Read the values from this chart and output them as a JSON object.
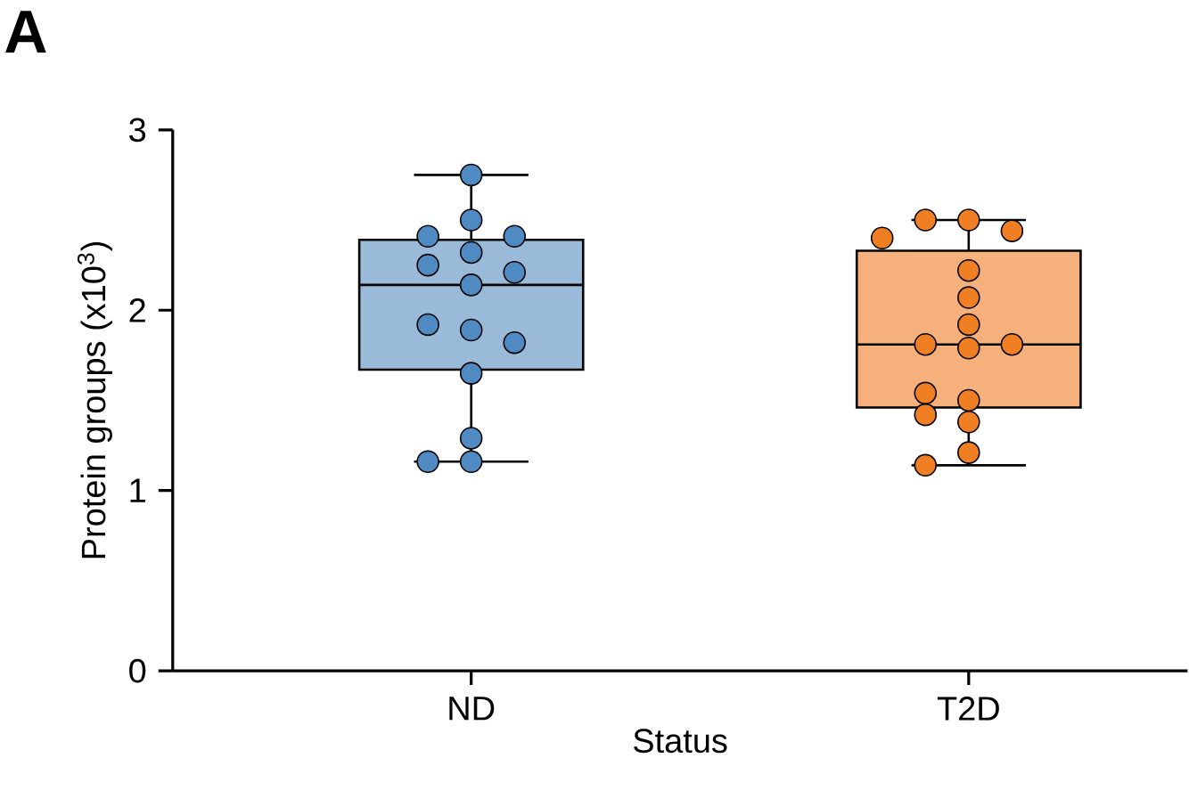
{
  "chart_data": {
    "type": "box",
    "title": "A",
    "xlabel": "Status",
    "ylabel": "Protein groups (x10$^{3}$)",
    "categories": [
      "ND",
      "T2D"
    ],
    "colors": [
      "#99bbd9",
      "#f5b07b"
    ],
    "boxes": [
      {
        "low": 1.16,
        "q1": 1.67,
        "median": 2.14,
        "q3": 2.39,
        "high": 2.75
      },
      {
        "low": 1.14,
        "q1": 1.46,
        "median": 1.81,
        "q3": 2.33,
        "high": 2.5
      }
    ],
    "ylim": [
      0,
      3
    ],
    "yticks": [
      0,
      1,
      2,
      3
    ],
    "series": [
      {
        "type": "scatter",
        "color": "#4f8bc2",
        "marker": "circle",
        "x": [
          "ND",
          "ND",
          "ND",
          "ND",
          "ND",
          "ND",
          "ND",
          "ND",
          "ND",
          "ND",
          "ND",
          "ND",
          "ND",
          "ND",
          "ND"
        ],
        "values": [
          2.75,
          2.5,
          2.41,
          2.41,
          2.32,
          2.25,
          2.21,
          2.14,
          1.89,
          1.92,
          1.82,
          1.65,
          1.29,
          1.16,
          1.16
        ]
      },
      {
        "type": "scatter",
        "color": "#f07f23",
        "marker": "circle",
        "x": [
          "T2D",
          "T2D",
          "T2D",
          "T2D",
          "T2D",
          "T2D",
          "T2D",
          "T2D",
          "T2D",
          "T2D",
          "T2D",
          "T2D",
          "T2D",
          "T2D",
          "T2D",
          "T2D"
        ],
        "values": [
          2.5,
          2.5,
          2.44,
          2.4,
          2.22,
          2.07,
          1.92,
          1.79,
          1.81,
          1.81,
          1.5,
          1.54,
          1.42,
          1.38,
          1.21,
          1.14
        ]
      }
    ]
  }
}
